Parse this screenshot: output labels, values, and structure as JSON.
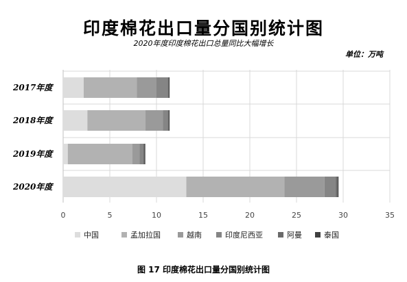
{
  "header": {
    "title": "印度棉花出口量分国别统计图",
    "subtitle": "2020年度印度棉花出口总量同比大幅增长",
    "unit": "单位：万吨"
  },
  "footer": {
    "caption": "图 17    印度棉花出口量分国别统计图"
  },
  "chart_data": {
    "type": "bar",
    "orientation": "horizontal",
    "stacked": true,
    "categories": [
      "2017年度",
      "2018年度",
      "2019年度",
      "2020年度"
    ],
    "series": [
      {
        "name": "中国",
        "color": "#dddddd",
        "values": [
          2.2,
          2.6,
          0.5,
          13.2
        ]
      },
      {
        "name": "孟加拉国",
        "color": "#b2b2b2",
        "values": [
          5.7,
          6.2,
          6.9,
          10.5
        ]
      },
      {
        "name": "越南",
        "color": "#9a9a9a",
        "values": [
          2.1,
          1.9,
          0.8,
          4.3
        ]
      },
      {
        "name": "印度尼西亚",
        "color": "#858585",
        "values": [
          1.2,
          0.5,
          0.4,
          1.2
        ]
      },
      {
        "name": "阿曼",
        "color": "#6a6a6a",
        "values": [
          0.1,
          0.1,
          0.1,
          0.2
        ]
      },
      {
        "name": "泰国",
        "color": "#404040",
        "values": [
          0.1,
          0.1,
          0.1,
          0.1
        ]
      }
    ],
    "xlim": [
      0,
      35
    ],
    "xticks": [
      0,
      5,
      10,
      15,
      20,
      25,
      30,
      35
    ],
    "grid": true,
    "legend_position": "bottom"
  }
}
